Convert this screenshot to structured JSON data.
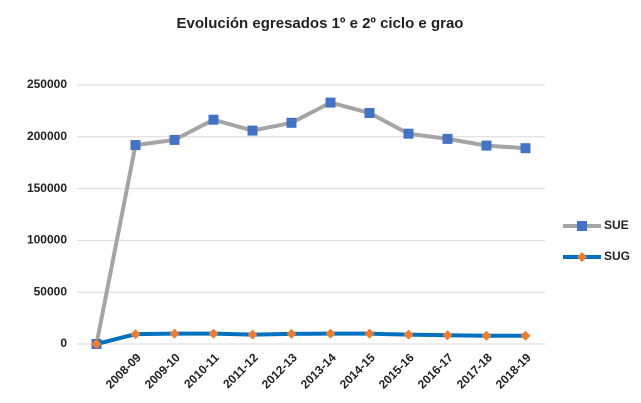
{
  "chart_data": {
    "type": "line",
    "title": "Evolución egresados 1º e 2º ciclo e grao",
    "categories": [
      null,
      "2008-09",
      "2009-10",
      "2010-11",
      "2011-12",
      "2012-13",
      "2013-14",
      "2014-15",
      "2015-16",
      "2016-17",
      "2017-18",
      "2018-19"
    ],
    "series": [
      {
        "name": "SUE",
        "color": "#a5a5a5",
        "marker": "square",
        "marker_color": "#4472c4",
        "values": [
          0,
          192000,
          197000,
          216500,
          206000,
          213500,
          233000,
          223000,
          203000,
          198000,
          191500,
          189000
        ]
      },
      {
        "name": "SUG",
        "color": "#0070c0",
        "marker": "diamond",
        "marker_color": "#ed7d31",
        "values": [
          0,
          9500,
          10000,
          10000,
          9000,
          9800,
          10000,
          10000,
          9000,
          8500,
          8000,
          8000
        ]
      }
    ],
    "ylim": [
      0,
      250000
    ],
    "yticks": [
      0,
      50000,
      100000,
      150000,
      200000,
      250000
    ],
    "grid": true,
    "legend": "right"
  }
}
